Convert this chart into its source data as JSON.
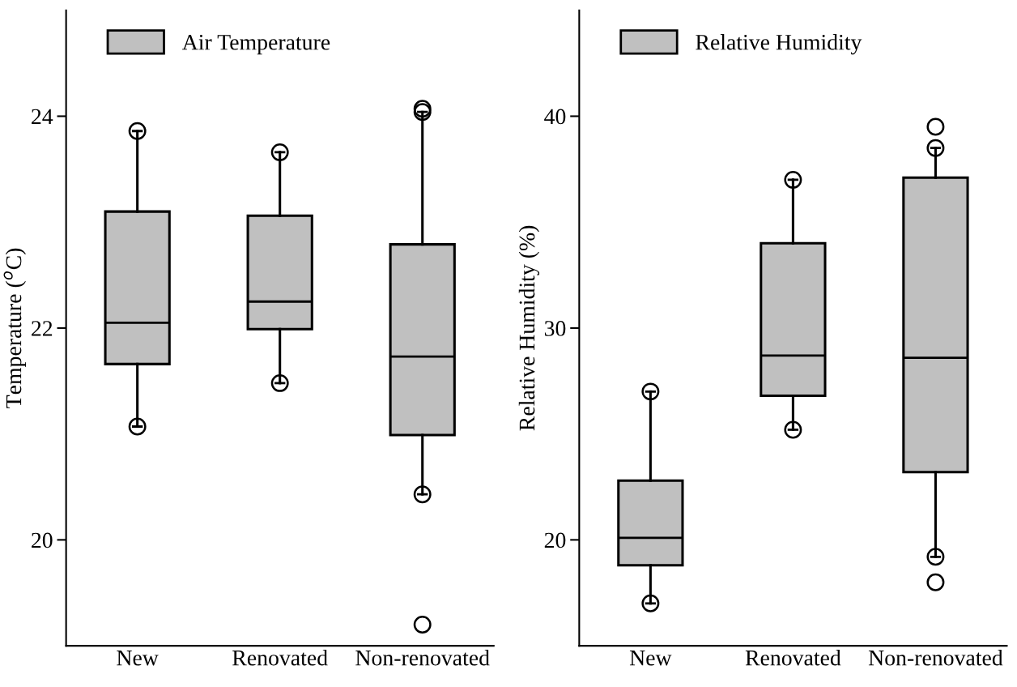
{
  "chart_data": [
    {
      "type": "box",
      "categories": [
        "New",
        "Renovated",
        "Non-renovated"
      ],
      "ylabel": "Temperature ($^{o}$C)",
      "ylim": [
        19,
        25
      ],
      "yticks": [
        20,
        22,
        24
      ],
      "legend": "top left",
      "grid": false,
      "series": [
        {
          "name": "Air Temperature",
          "color": "#c0c0c0",
          "boxes": [
            {
              "low": 21.07,
              "q1": 21.66,
              "median": 22.05,
              "q3": 23.1,
              "high": 23.86,
              "outliers": [
                23.86,
                21.07
              ]
            },
            {
              "low": 21.48,
              "q1": 21.99,
              "median": 22.25,
              "q3": 23.06,
              "high": 23.66,
              "outliers": [
                23.66,
                21.48
              ]
            },
            {
              "low": 20.43,
              "q1": 20.99,
              "median": 21.73,
              "q3": 22.79,
              "high": 24.04,
              "outliers": [
                24.04,
                24.07,
                20.43,
                19.2
              ]
            }
          ]
        }
      ]
    },
    {
      "type": "box",
      "categories": [
        "New",
        "Renovated",
        "Non-renovated"
      ],
      "ylabel": "Relative Humidity (%)",
      "ylim": [
        15,
        45
      ],
      "yticks": [
        20,
        30,
        40
      ],
      "legend": "top left",
      "grid": false,
      "series": [
        {
          "name": "Relative Humidity",
          "color": "#c0c0c0",
          "boxes": [
            {
              "low": 17.0,
              "q1": 18.8,
              "median": 20.1,
              "q3": 22.8,
              "high": 27.0,
              "outliers": [
                27.0,
                17.0
              ]
            },
            {
              "low": 25.2,
              "q1": 26.8,
              "median": 28.7,
              "q3": 34.0,
              "high": 37.0,
              "outliers": [
                37.0,
                25.2
              ]
            },
            {
              "low": 19.2,
              "q1": 23.2,
              "median": 28.6,
              "q3": 37.1,
              "high": 38.5,
              "outliers": [
                38.5,
                39.5,
                19.2,
                18.0
              ]
            }
          ]
        }
      ]
    }
  ]
}
